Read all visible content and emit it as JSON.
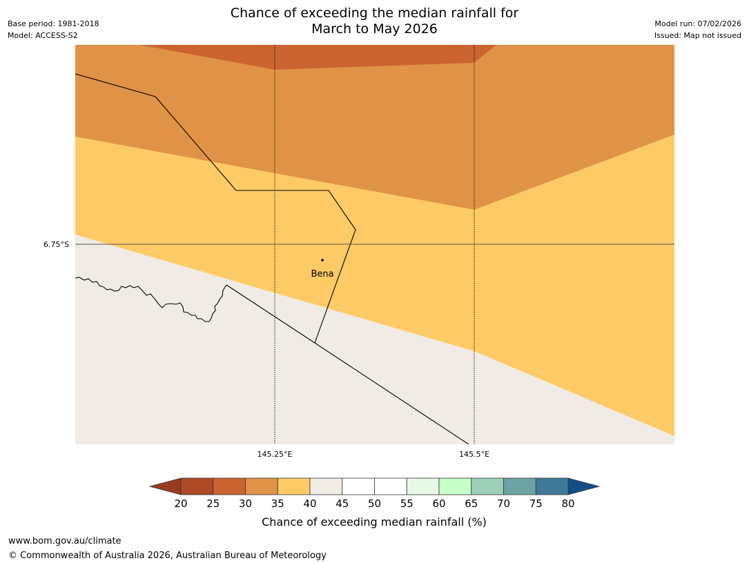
{
  "header": {
    "title_line1": "Chance of exceeding the median rainfall for",
    "title_line2": "March to May 2026",
    "base_period": "Base period: 1981-2018",
    "model": "Model: ACCESS-S2",
    "model_run": "Model run: 07/02/2026",
    "issued": "Issued: Map not issued"
  },
  "map": {
    "lat_label": "6.75°S",
    "lon_labels": [
      "145.25°E",
      "145.5°E"
    ],
    "place_label": "Bena"
  },
  "legend": {
    "title": "Chance of exceeding median rainfall (%)",
    "ticks": [
      "20",
      "25",
      "30",
      "35",
      "40",
      "45",
      "50",
      "55",
      "60",
      "65",
      "70",
      "75",
      "80"
    ],
    "under_color": "#983b20",
    "over_color": "#134f86",
    "colors": [
      "#ae4a26",
      "#cb6431",
      "#e09346",
      "#fdca65",
      "#f0ebe5",
      "#ffffff",
      "#ffffff",
      "#e8f8e6",
      "#c8ffc8",
      "#9ecfb8",
      "#6ea3a5",
      "#3f7899"
    ]
  },
  "footer": {
    "url": "www.bom.gov.au/climate",
    "copyright": "© Commonwealth of Australia 2026, Australian Bureau of Meteorology"
  }
}
